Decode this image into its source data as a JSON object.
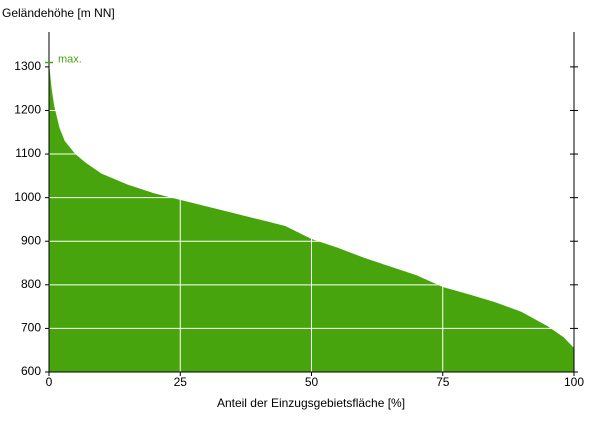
{
  "chart_data": {
    "type": "area",
    "y_label": "Geländehöhe [m NN]",
    "x_label": "Anteil der Einzugsgebietsfläche [%]",
    "x": [
      0,
      0.5,
      1,
      2,
      3,
      5,
      7,
      10,
      15,
      20,
      25,
      30,
      35,
      40,
      45,
      50,
      55,
      60,
      65,
      70,
      75,
      80,
      85,
      90,
      95,
      98,
      100
    ],
    "values": [
      1310,
      1250,
      1210,
      1160,
      1130,
      1100,
      1080,
      1055,
      1030,
      1010,
      995,
      980,
      965,
      950,
      935,
      905,
      885,
      862,
      842,
      822,
      795,
      778,
      760,
      738,
      705,
      680,
      655
    ],
    "color": "#48a40c",
    "xlim": [
      0,
      100
    ],
    "xticks": [
      0,
      25,
      50,
      75,
      100
    ],
    "ylim": [
      600,
      1380
    ],
    "yticks": [
      600,
      700,
      800,
      900,
      1000,
      1100,
      1200,
      1300
    ],
    "grid": true,
    "annotations": [
      {
        "text": "max.",
        "y": 1310
      }
    ]
  }
}
